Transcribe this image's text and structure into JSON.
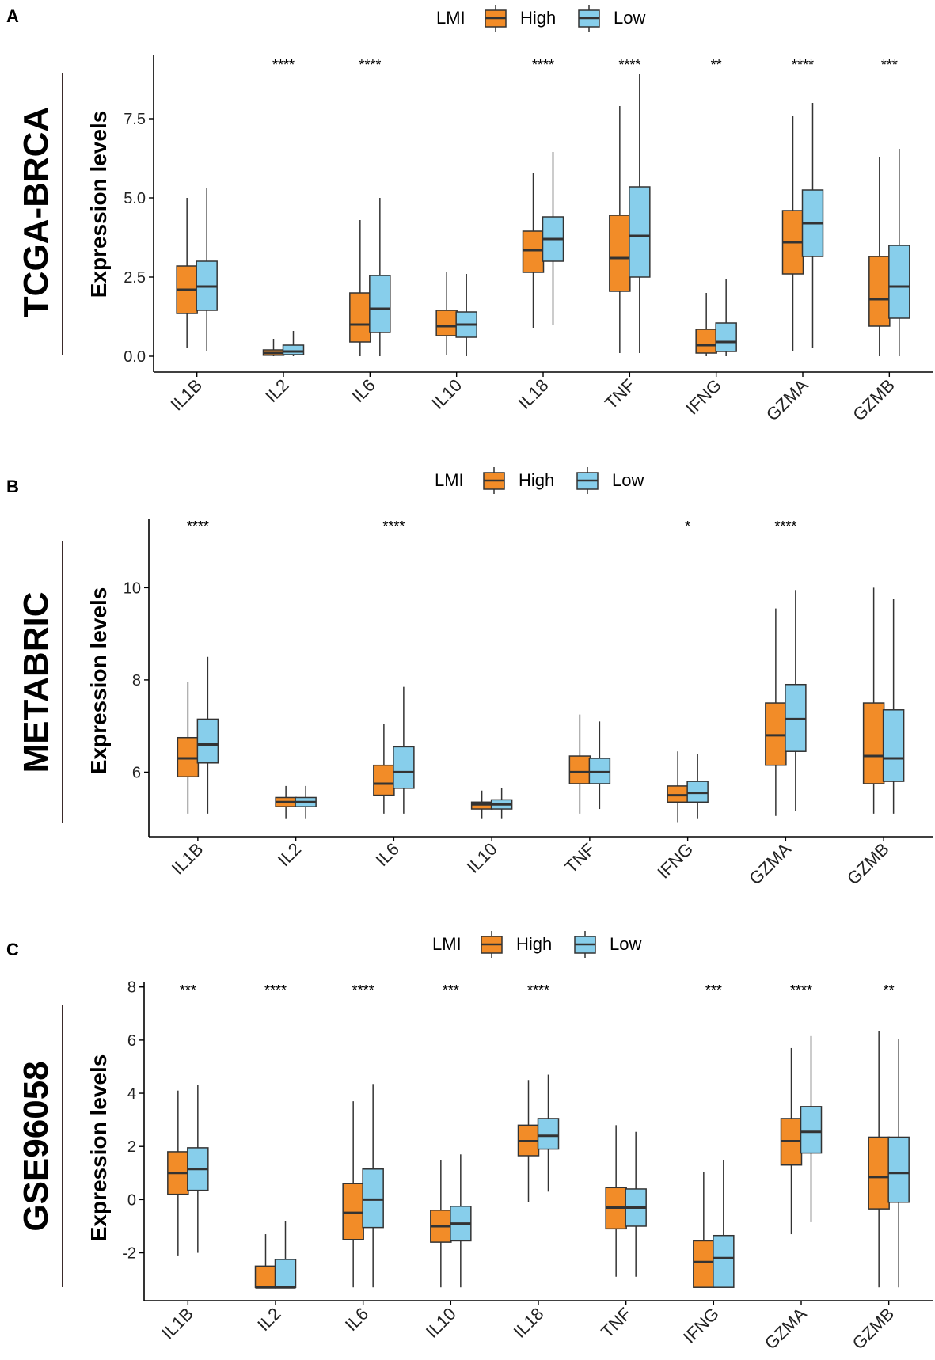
{
  "legend": {
    "title": "LMI",
    "entries": [
      {
        "name": "High",
        "color": "#F28C28"
      },
      {
        "name": "Low",
        "color": "#87CEEB"
      }
    ]
  },
  "chart_data": [
    {
      "panel": "A",
      "type": "boxplot",
      "dataset": "TCGA-BRCA",
      "ylabel": "Expression levels",
      "ylim": [
        -0.5,
        9.5
      ],
      "yticks": [
        0.0,
        2.5,
        5.0,
        7.5
      ],
      "ytick_labels": [
        "0.0",
        "2.5",
        "5.0",
        "7.5"
      ],
      "categories": [
        "IL1B",
        "IL2",
        "IL6",
        "IL10",
        "IL18",
        "TNF",
        "IFNG",
        "GZMA",
        "GZMB"
      ],
      "significance": [
        "",
        "****",
        "****",
        "",
        "****",
        "****",
        "**",
        "****",
        "***"
      ],
      "series": [
        {
          "name": "High",
          "boxes": [
            [
              0.25,
              1.35,
              2.1,
              2.85,
              5.0
            ],
            [
              0.0,
              0.03,
              0.1,
              0.2,
              0.55
            ],
            [
              0.0,
              0.45,
              1.0,
              2.0,
              4.3
            ],
            [
              0.05,
              0.65,
              0.95,
              1.45,
              2.65
            ],
            [
              0.9,
              2.65,
              3.35,
              3.95,
              5.8
            ],
            [
              0.1,
              2.05,
              3.1,
              4.45,
              7.9
            ],
            [
              0.0,
              0.1,
              0.35,
              0.85,
              2.0
            ],
            [
              0.15,
              2.6,
              3.6,
              4.6,
              7.6
            ],
            [
              0.0,
              0.95,
              1.8,
              3.15,
              6.3
            ]
          ]
        },
        {
          "name": "Low",
          "boxes": [
            [
              0.15,
              1.45,
              2.2,
              3.0,
              5.3
            ],
            [
              0.0,
              0.05,
              0.15,
              0.35,
              0.8
            ],
            [
              0.0,
              0.75,
              1.5,
              2.55,
              5.0
            ],
            [
              0.0,
              0.6,
              1.0,
              1.4,
              2.6
            ],
            [
              1.0,
              3.0,
              3.7,
              4.4,
              6.45
            ],
            [
              0.1,
              2.5,
              3.8,
              5.35,
              8.9
            ],
            [
              0.0,
              0.15,
              0.45,
              1.05,
              2.45
            ],
            [
              0.25,
              3.15,
              4.2,
              5.25,
              8.0
            ],
            [
              0.0,
              1.2,
              2.2,
              3.5,
              6.55
            ]
          ]
        }
      ]
    },
    {
      "panel": "B",
      "type": "boxplot",
      "dataset": "METABRIC",
      "ylabel": "Expression levels",
      "ylim": [
        4.6,
        11.5
      ],
      "yticks": [
        6,
        8,
        10
      ],
      "ytick_labels": [
        "6",
        "8",
        "10"
      ],
      "categories": [
        "IL1B",
        "IL2",
        "IL6",
        "IL10",
        "TNF",
        "IFNG",
        "GZMA",
        "GZMB"
      ],
      "significance": [
        "****",
        "",
        "****",
        "",
        "",
        "*",
        "****",
        ""
      ],
      "series": [
        {
          "name": "High",
          "boxes": [
            [
              5.1,
              5.9,
              6.3,
              6.75,
              7.95
            ],
            [
              5.0,
              5.25,
              5.35,
              5.45,
              5.7
            ],
            [
              5.1,
              5.5,
              5.75,
              6.15,
              7.05
            ],
            [
              5.0,
              5.2,
              5.3,
              5.35,
              5.6
            ],
            [
              5.1,
              5.75,
              6.0,
              6.35,
              7.25
            ],
            [
              4.9,
              5.35,
              5.5,
              5.7,
              6.45
            ],
            [
              5.05,
              6.15,
              6.8,
              7.5,
              9.55
            ],
            [
              5.1,
              5.75,
              6.35,
              7.5,
              10.0
            ]
          ]
        },
        {
          "name": "Low",
          "boxes": [
            [
              5.1,
              6.2,
              6.6,
              7.15,
              8.5
            ],
            [
              5.0,
              5.25,
              5.35,
              5.45,
              5.7
            ],
            [
              5.1,
              5.65,
              6.0,
              6.55,
              7.85
            ],
            [
              5.0,
              5.2,
              5.3,
              5.4,
              5.65
            ],
            [
              5.2,
              5.75,
              6.0,
              6.3,
              7.1
            ],
            [
              5.0,
              5.35,
              5.55,
              5.8,
              6.4
            ],
            [
              5.15,
              6.45,
              7.15,
              7.9,
              9.95
            ],
            [
              5.1,
              5.8,
              6.3,
              7.35,
              9.75
            ]
          ]
        }
      ]
    },
    {
      "panel": "C",
      "type": "boxplot",
      "dataset": "GSE96058",
      "ylabel": "Expression levels",
      "ylim": [
        -3.8,
        8.2
      ],
      "yticks": [
        -2,
        0,
        2,
        4,
        6,
        8
      ],
      "ytick_labels": [
        "-2",
        "0",
        "2",
        "4",
        "6",
        "8"
      ],
      "categories": [
        "IL1B",
        "IL2",
        "IL6",
        "IL10",
        "IL18",
        "TNF",
        "IFNG",
        "GZMA",
        "GZMB"
      ],
      "significance": [
        "***",
        "****",
        "****",
        "***",
        "****",
        "",
        "***",
        "****",
        "**"
      ],
      "series": [
        {
          "name": "High",
          "boxes": [
            [
              -2.1,
              0.2,
              1.0,
              1.8,
              4.1
            ],
            [
              -3.3,
              -3.3,
              -3.3,
              -2.5,
              -1.3
            ],
            [
              -3.3,
              -1.5,
              -0.5,
              0.6,
              3.7
            ],
            [
              -3.3,
              -1.6,
              -1.0,
              -0.4,
              1.5
            ],
            [
              -0.1,
              1.65,
              2.2,
              2.8,
              4.5
            ],
            [
              -2.9,
              -1.1,
              -0.3,
              0.45,
              2.8
            ],
            [
              -3.3,
              -3.3,
              -2.35,
              -1.55,
              1.05
            ],
            [
              -1.3,
              1.3,
              2.2,
              3.05,
              5.7
            ],
            [
              -3.3,
              -0.35,
              0.85,
              2.35,
              6.35
            ]
          ]
        },
        {
          "name": "Low",
          "boxes": [
            [
              -2.0,
              0.35,
              1.15,
              1.95,
              4.3
            ],
            [
              -3.3,
              -3.3,
              -3.3,
              -2.25,
              -0.8
            ],
            [
              -3.3,
              -1.05,
              0.0,
              1.15,
              4.35
            ],
            [
              -3.3,
              -1.55,
              -0.9,
              -0.25,
              1.7
            ],
            [
              0.3,
              1.9,
              2.4,
              3.05,
              4.7
            ],
            [
              -2.9,
              -1.0,
              -0.3,
              0.4,
              2.55
            ],
            [
              -3.3,
              -3.3,
              -2.2,
              -1.35,
              1.5
            ],
            [
              -0.85,
              1.75,
              2.55,
              3.5,
              6.15
            ],
            [
              -3.3,
              -0.1,
              1.0,
              2.35,
              6.05
            ]
          ]
        }
      ]
    }
  ]
}
